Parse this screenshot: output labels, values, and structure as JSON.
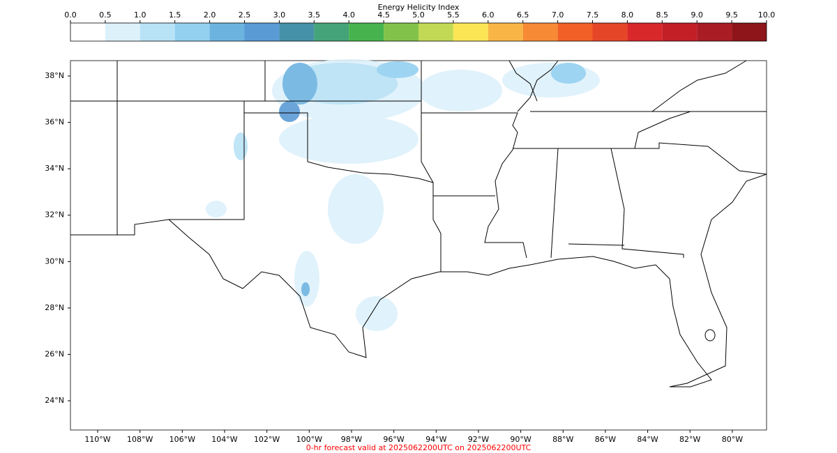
{
  "colorbar": {
    "title": "Energy Helicity Index",
    "ticks": [
      {
        "value": 0,
        "label": "0.0"
      },
      {
        "value": 0.5,
        "label": "0.5"
      },
      {
        "value": 1,
        "label": "1.0"
      },
      {
        "value": 1.5,
        "label": "1.5"
      },
      {
        "value": 2,
        "label": "2.0"
      },
      {
        "value": 2.5,
        "label": "2.5"
      },
      {
        "value": 3,
        "label": "3.0"
      },
      {
        "value": 3.5,
        "label": "3.5"
      },
      {
        "value": 4,
        "label": "4.0"
      },
      {
        "value": 4.5,
        "label": "4.5"
      },
      {
        "value": 5,
        "label": "5.0"
      },
      {
        "value": 5.5,
        "label": "5.5"
      },
      {
        "value": 6,
        "label": "6.0"
      },
      {
        "value": 6.5,
        "label": "6.5"
      },
      {
        "value": 7,
        "label": "7.0"
      },
      {
        "value": 7.5,
        "label": "7.5"
      },
      {
        "value": 8,
        "label": "8.0"
      },
      {
        "value": 8.5,
        "label": "8.5"
      },
      {
        "value": 9,
        "label": "9.0"
      },
      {
        "value": 9.5,
        "label": "9.5"
      },
      {
        "value": 10,
        "label": "10.0"
      }
    ],
    "colors": [
      "#ffffff",
      "#ddf1fb",
      "#b8e2f6",
      "#93d0f0",
      "#6db3e0",
      "#5a9bd5",
      "#4592a8",
      "#45a37a",
      "#46b34e",
      "#82c24a",
      "#c2d955",
      "#fbe555",
      "#f9b646",
      "#f78a35",
      "#f26028",
      "#e64628",
      "#d9282a",
      "#c21f27",
      "#aa1c23",
      "#8e1519"
    ]
  },
  "map": {
    "lat_ticks": [
      {
        "value": 38,
        "label": "38°N"
      },
      {
        "value": 36,
        "label": "36°N"
      },
      {
        "value": 34,
        "label": "34°N"
      },
      {
        "value": 32,
        "label": "32°N"
      },
      {
        "value": 30,
        "label": "30°N"
      },
      {
        "value": 28,
        "label": "28°N"
      },
      {
        "value": 26,
        "label": "26°N"
      },
      {
        "value": 24,
        "label": "24°N"
      }
    ],
    "lon_ticks": [
      {
        "value": -110,
        "label": "110°W"
      },
      {
        "value": -108,
        "label": "108°W"
      },
      {
        "value": -106,
        "label": "106°W"
      },
      {
        "value": -104,
        "label": "104°W"
      },
      {
        "value": -102,
        "label": "102°W"
      },
      {
        "value": -100,
        "label": "100°W"
      },
      {
        "value": -98,
        "label": "98°W"
      },
      {
        "value": -96,
        "label": "96°W"
      },
      {
        "value": -94,
        "label": "94°W"
      },
      {
        "value": -92,
        "label": "92°W"
      },
      {
        "value": -90,
        "label": "90°W"
      },
      {
        "value": -88,
        "label": "88°W"
      },
      {
        "value": -86,
        "label": "86°W"
      },
      {
        "value": -84,
        "label": "84°W"
      },
      {
        "value": -82,
        "label": "82°W"
      },
      {
        "value": -80,
        "label": "80°W"
      }
    ]
  },
  "footer": "0-hr forecast valid at 2025062200UTC on 2025062200UTC"
}
